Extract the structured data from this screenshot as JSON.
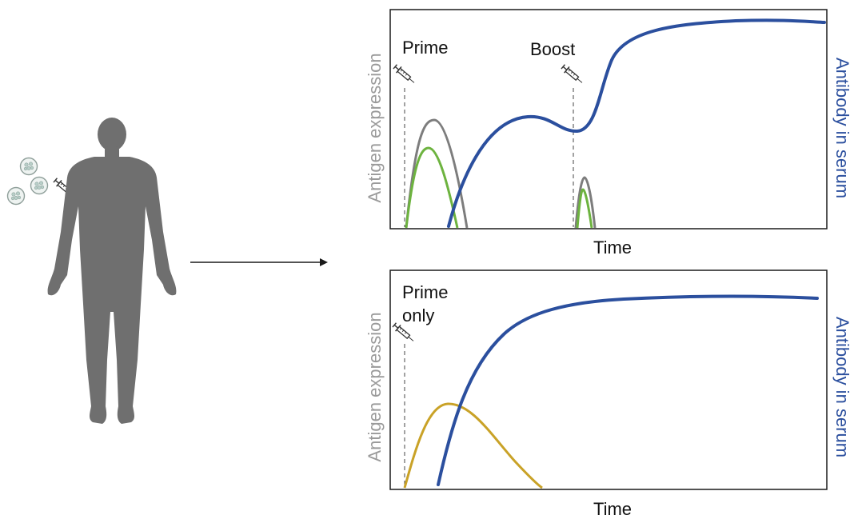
{
  "colors": {
    "silhouette": "#6f6f6f",
    "frame": "#1a1a1a",
    "antigen_axis_label": "#9a9a9a",
    "antibody_axis_label": "#2b4f9e",
    "antibody_curve": "#2b4f9e",
    "antigen_gray": "#7d7d7d",
    "antigen_green": "#6db33f",
    "antigen_gold": "#c9a227",
    "cell": "#b9cfc9"
  },
  "icons": [
    "cell-dish-icon",
    "syringe-icon",
    "human-silhouette-icon",
    "arrow-right-icon"
  ],
  "panels": {
    "top": {
      "label_prime": "Prime",
      "label_boost": "Boost",
      "y_left_label": "Antigen expression",
      "y_right_label": "Antibody in serum",
      "x_label": "Time"
    },
    "bottom": {
      "label_prime_line1": "Prime",
      "label_prime_line2": "only",
      "y_left_label": "Antigen expression",
      "y_right_label": "Antibody in serum",
      "x_label": "Time"
    }
  }
}
